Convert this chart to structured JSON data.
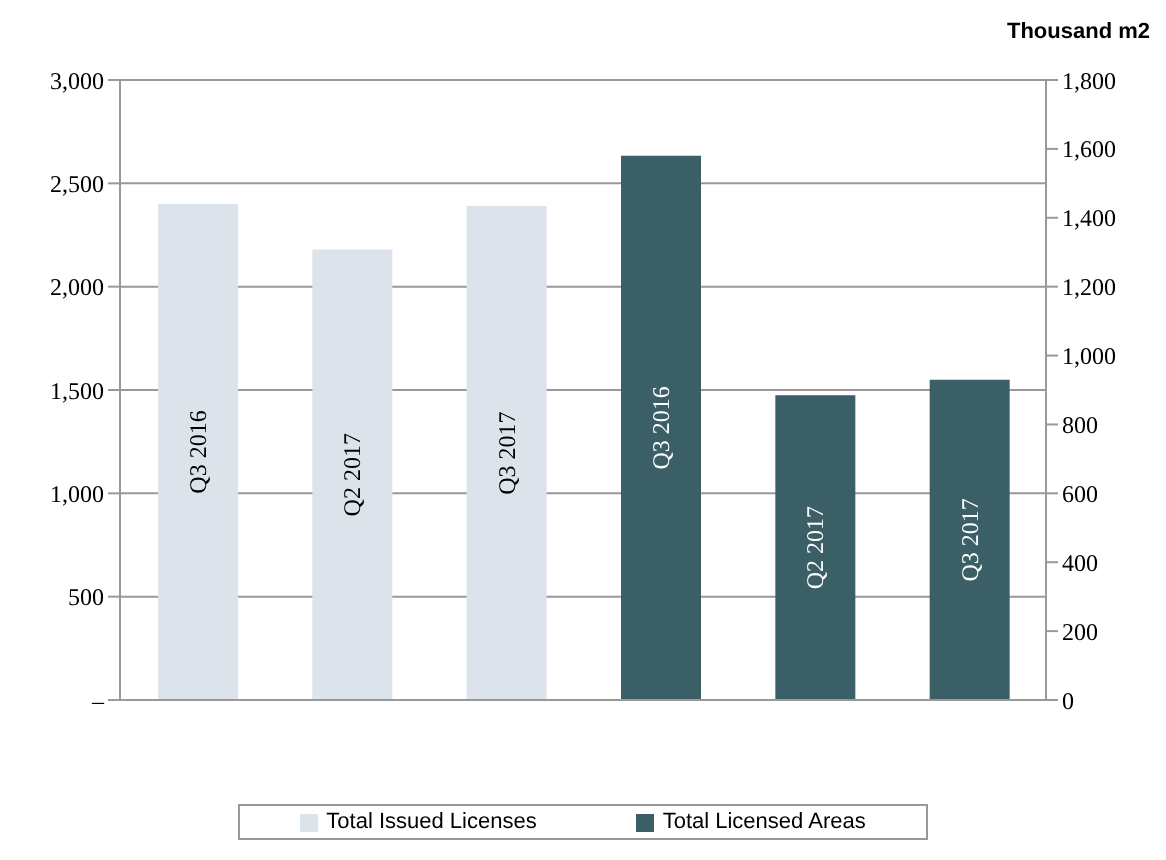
{
  "chart_data": {
    "type": "bar",
    "y2label": "Thousand m2",
    "categories": [
      "Q3 2016",
      "Q2 2017",
      "Q3 2017",
      "Q3 2016",
      "Q2 2017",
      "Q3 2017"
    ],
    "series": [
      {
        "name": "Total Issued Licenses",
        "color": "#dce3ea",
        "values": [
          2400,
          2180,
          2390,
          null,
          null,
          null
        ]
      },
      {
        "name": "Total Licensed Areas",
        "color": "#3b5f66",
        "axis": "y2",
        "values": [
          null,
          null,
          null,
          1580,
          885,
          930
        ]
      }
    ],
    "ylim": [
      0,
      3000
    ],
    "yticks": [
      {
        "value": 0,
        "label": "–"
      },
      {
        "value": 500,
        "label": "500"
      },
      {
        "value": 1000,
        "label": "1,000"
      },
      {
        "value": 1500,
        "label": "1,500"
      },
      {
        "value": 2000,
        "label": "2,000"
      },
      {
        "value": 2500,
        "label": "2,500"
      },
      {
        "value": 3000,
        "label": "3,000"
      }
    ],
    "y2lim": [
      0,
      1800
    ],
    "y2ticks": [
      0,
      200,
      400,
      600,
      800,
      {
        "value": 1000,
        "label": "1,000"
      },
      {
        "value": 1200,
        "label": "1,200"
      },
      {
        "value": 1400,
        "label": "1,400"
      },
      {
        "value": 1600,
        "label": "1,600"
      },
      {
        "value": 1800,
        "label": "1,800"
      }
    ],
    "grid": "y",
    "legend": "bottom"
  }
}
